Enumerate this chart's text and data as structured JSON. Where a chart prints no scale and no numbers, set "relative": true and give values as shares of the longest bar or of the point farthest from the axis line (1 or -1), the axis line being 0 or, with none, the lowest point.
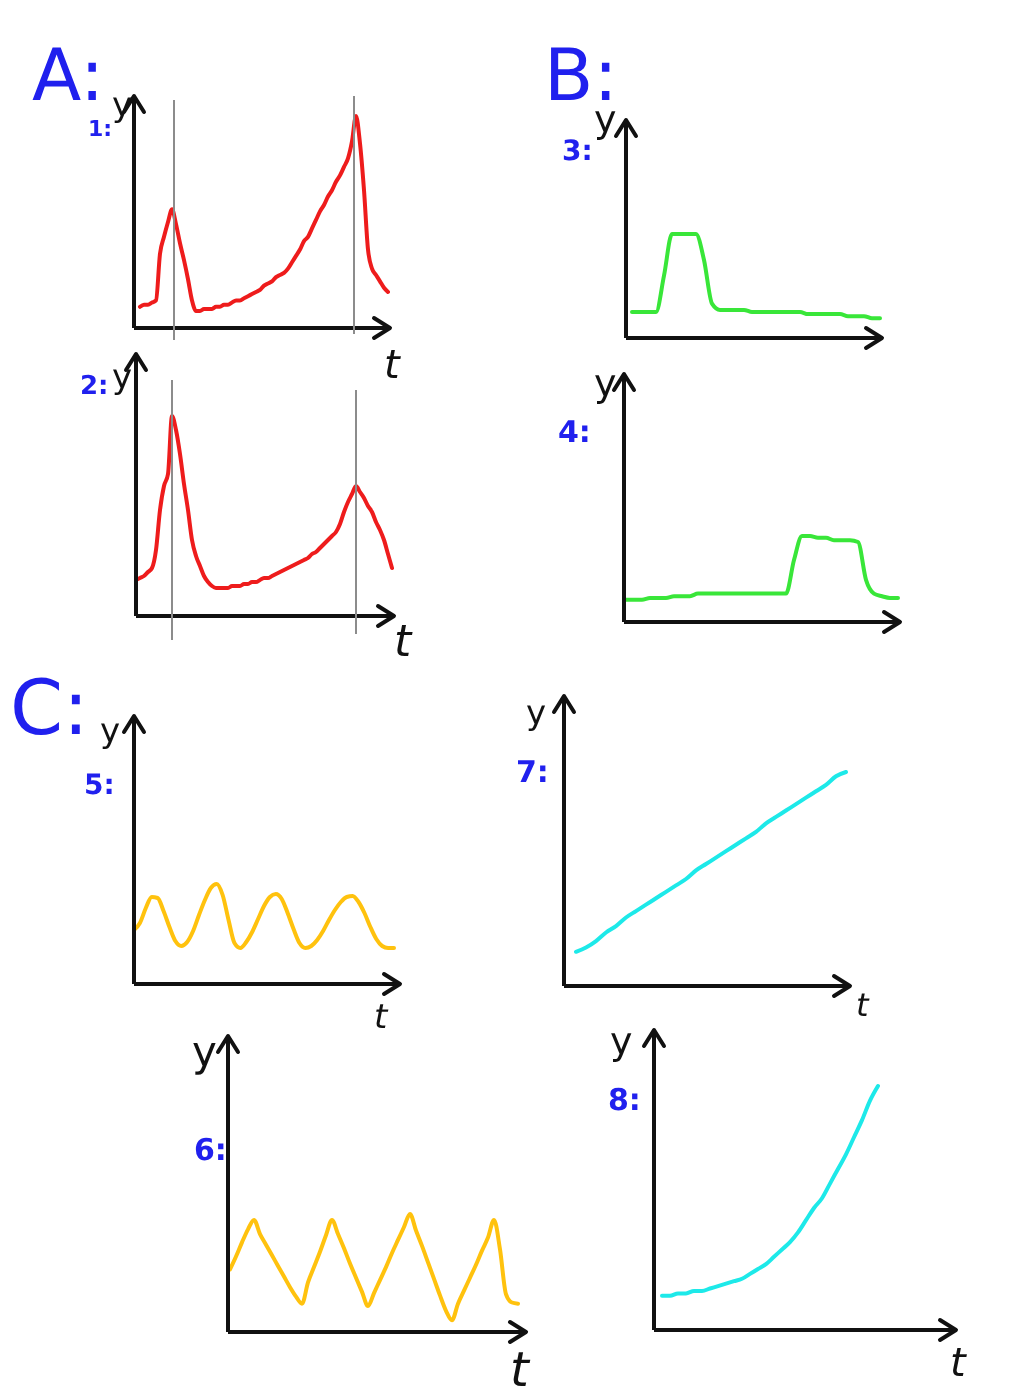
{
  "chart_data": [
    {
      "type": "line",
      "title": "1:",
      "annotations": [
        "A:"
      ],
      "xlabel": "t",
      "ylabel": "y",
      "relative": true,
      "color": "#ee1c1c",
      "categories": [
        null,
        null,
        null,
        null,
        null,
        null,
        null,
        null,
        null,
        null,
        null,
        null,
        null,
        null,
        null,
        null,
        null,
        null,
        null,
        null,
        null,
        null,
        null,
        null,
        null,
        null,
        null,
        null,
        null,
        null,
        null,
        null,
        null,
        null,
        null,
        null,
        null,
        null,
        null,
        null,
        null,
        null,
        null,
        null,
        null,
        null,
        null,
        null,
        null,
        null,
        null,
        null,
        null,
        null,
        null,
        null,
        null,
        null,
        null,
        null,
        null,
        null,
        null
      ],
      "values": [
        0.1,
        0.11,
        0.11,
        0.12,
        0.13,
        0.35,
        0.43,
        0.5,
        0.56,
        0.49,
        0.4,
        0.32,
        0.23,
        0.13,
        0.08,
        0.08,
        0.09,
        0.09,
        0.09,
        0.1,
        0.1,
        0.11,
        0.11,
        0.12,
        0.13,
        0.13,
        0.14,
        0.15,
        0.16,
        0.17,
        0.18,
        0.2,
        0.21,
        0.22,
        0.24,
        0.25,
        0.26,
        0.28,
        0.31,
        0.34,
        0.37,
        0.41,
        0.43,
        0.47,
        0.51,
        0.55,
        0.58,
        0.62,
        0.65,
        0.69,
        0.72,
        0.76,
        0.8,
        0.88,
        1.0,
        0.87,
        0.65,
        0.37,
        0.28,
        0.25,
        0.22,
        0.19,
        0.17
      ]
    },
    {
      "type": "line",
      "title": "2:",
      "xlabel": "t",
      "ylabel": "y",
      "relative": true,
      "color": "#ee1c1c",
      "categories": [
        null,
        null,
        null,
        null,
        null,
        null,
        null,
        null,
        null,
        null,
        null,
        null,
        null,
        null,
        null,
        null,
        null,
        null,
        null,
        null,
        null,
        null,
        null,
        null,
        null,
        null,
        null,
        null,
        null,
        null,
        null,
        null,
        null,
        null,
        null,
        null,
        null,
        null,
        null,
        null,
        null,
        null,
        null,
        null,
        null,
        null,
        null,
        null,
        null,
        null,
        null,
        null,
        null,
        null,
        null,
        null,
        null,
        null,
        null,
        null,
        null,
        null,
        null,
        null,
        null
      ],
      "values": [
        0.18,
        0.19,
        0.2,
        0.22,
        0.24,
        0.33,
        0.53,
        0.65,
        0.71,
        1.0,
        0.93,
        0.81,
        0.66,
        0.53,
        0.38,
        0.3,
        0.25,
        0.2,
        0.17,
        0.15,
        0.14,
        0.14,
        0.14,
        0.14,
        0.15,
        0.15,
        0.15,
        0.16,
        0.16,
        0.17,
        0.17,
        0.18,
        0.19,
        0.19,
        0.2,
        0.21,
        0.22,
        0.23,
        0.24,
        0.25,
        0.26,
        0.27,
        0.28,
        0.29,
        0.31,
        0.32,
        0.34,
        0.36,
        0.38,
        0.4,
        0.42,
        0.46,
        0.52,
        0.57,
        0.61,
        0.65,
        0.62,
        0.59,
        0.55,
        0.52,
        0.47,
        0.43,
        0.38,
        0.31,
        0.24
      ]
    },
    {
      "type": "line",
      "title": "3:",
      "annotations": [
        "B:"
      ],
      "ylabel": "y",
      "relative": true,
      "color": "#39e639",
      "categories": [
        null,
        null,
        null,
        null,
        null,
        null,
        null,
        null,
        null,
        null,
        null,
        null,
        null,
        null,
        null,
        null,
        null,
        null,
        null,
        null,
        null,
        null,
        null,
        null,
        null,
        null,
        null,
        null,
        null,
        null,
        null,
        null
      ],
      "values": [
        0.25,
        0.25,
        0.25,
        0.25,
        0.6,
        1.0,
        1.0,
        1.0,
        1.0,
        0.75,
        0.33,
        0.27,
        0.27,
        0.27,
        0.27,
        0.25,
        0.25,
        0.25,
        0.25,
        0.25,
        0.25,
        0.25,
        0.23,
        0.23,
        0.23,
        0.23,
        0.23,
        0.21,
        0.21,
        0.21,
        0.19,
        0.19
      ]
    },
    {
      "type": "line",
      "title": "4:",
      "ylabel": "y",
      "relative": true,
      "color": "#39e639",
      "categories": [
        null,
        null,
        null,
        null,
        null,
        null,
        null,
        null,
        null,
        null,
        null,
        null,
        null,
        null,
        null,
        null,
        null,
        null,
        null,
        null,
        null,
        null,
        null,
        null,
        null,
        null,
        null,
        null,
        null,
        null,
        null,
        null,
        null,
        null,
        null
      ],
      "values": [
        0.26,
        0.26,
        0.26,
        0.28,
        0.28,
        0.28,
        0.3,
        0.3,
        0.3,
        0.33,
        0.33,
        0.33,
        0.33,
        0.33,
        0.33,
        0.33,
        0.33,
        0.33,
        0.33,
        0.33,
        0.33,
        0.72,
        1.0,
        1.0,
        0.98,
        0.98,
        0.95,
        0.95,
        0.95,
        0.93,
        0.49,
        0.33,
        0.3,
        0.28,
        0.28
      ]
    },
    {
      "type": "line",
      "title": "5:",
      "annotations": [
        "C:"
      ],
      "xlabel": "t",
      "ylabel": "y",
      "relative": true,
      "color": "#ffc20e",
      "categories": [
        null,
        null,
        null,
        null,
        null,
        null,
        null,
        null,
        null,
        null,
        null,
        null,
        null,
        null,
        null,
        null,
        null,
        null,
        null,
        null,
        null,
        null,
        null,
        null,
        null,
        null,
        null,
        null,
        null,
        null,
        null,
        null,
        null,
        null,
        null,
        null,
        null,
        null,
        null,
        null,
        null,
        null,
        null,
        null,
        null
      ],
      "values": [
        0.54,
        0.61,
        0.76,
        0.87,
        0.86,
        0.73,
        0.57,
        0.43,
        0.38,
        0.42,
        0.53,
        0.69,
        0.84,
        0.96,
        1.0,
        0.89,
        0.64,
        0.41,
        0.36,
        0.42,
        0.52,
        0.65,
        0.78,
        0.87,
        0.9,
        0.85,
        0.71,
        0.55,
        0.41,
        0.36,
        0.38,
        0.44,
        0.53,
        0.64,
        0.74,
        0.82,
        0.87,
        0.88,
        0.82,
        0.71,
        0.57,
        0.45,
        0.38,
        0.36,
        0.36
      ]
    },
    {
      "type": "line",
      "title": "6:",
      "xlabel": "t",
      "ylabel": "y",
      "relative": true,
      "color": "#ffc20e",
      "categories": [
        null,
        null,
        null,
        null,
        null,
        null,
        null,
        null,
        null,
        null,
        null,
        null,
        null,
        null,
        null,
        null,
        null,
        null,
        null,
        null,
        null,
        null,
        null,
        null,
        null,
        null,
        null,
        null,
        null,
        null,
        null,
        null,
        null,
        null,
        null,
        null,
        null,
        null,
        null,
        null,
        null,
        null,
        null,
        null,
        null,
        null,
        null,
        null,
        null
      ],
      "values": [
        0.53,
        0.64,
        0.76,
        0.87,
        0.95,
        0.83,
        0.74,
        0.65,
        0.56,
        0.47,
        0.38,
        0.3,
        0.24,
        0.42,
        0.55,
        0.68,
        0.82,
        0.95,
        0.83,
        0.71,
        0.58,
        0.46,
        0.34,
        0.22,
        0.33,
        0.44,
        0.55,
        0.67,
        0.78,
        0.89,
        1.0,
        0.86,
        0.73,
        0.59,
        0.45,
        0.31,
        0.18,
        0.1,
        0.24,
        0.35,
        0.46,
        0.57,
        0.69,
        0.8,
        0.95,
        0.7,
        0.32,
        0.25,
        0.24
      ]
    },
    {
      "type": "line",
      "title": "7:",
      "xlabel": "t",
      "ylabel": "y",
      "relative": true,
      "color": "#1de9e9",
      "categories": [
        null,
        null,
        null,
        null,
        null,
        null,
        null,
        null,
        null,
        null,
        null,
        null,
        null,
        null,
        null,
        null,
        null,
        null,
        null,
        null,
        null,
        null,
        null,
        null,
        null,
        null,
        null,
        null
      ],
      "values": [
        0.16,
        0.18,
        0.21,
        0.25,
        0.28,
        0.32,
        0.35,
        0.38,
        0.41,
        0.44,
        0.47,
        0.5,
        0.54,
        0.57,
        0.6,
        0.63,
        0.66,
        0.69,
        0.72,
        0.76,
        0.79,
        0.82,
        0.85,
        0.88,
        0.91,
        0.94,
        0.98,
        1.0
      ]
    },
    {
      "type": "line",
      "title": "8:",
      "xlabel": "t",
      "ylabel": "y",
      "relative": true,
      "color": "#1de9e9",
      "categories": [
        null,
        null,
        null,
        null,
        null,
        null,
        null,
        null,
        null,
        null,
        null,
        null,
        null,
        null,
        null,
        null,
        null,
        null,
        null,
        null,
        null,
        null,
        null,
        null,
        null,
        null,
        null,
        null
      ],
      "values": [
        0.14,
        0.14,
        0.15,
        0.15,
        0.16,
        0.16,
        0.17,
        0.18,
        0.19,
        0.2,
        0.21,
        0.23,
        0.25,
        0.27,
        0.3,
        0.33,
        0.36,
        0.4,
        0.45,
        0.5,
        0.54,
        0.6,
        0.66,
        0.72,
        0.79,
        0.86,
        0.94,
        1.0
      ]
    }
  ]
}
